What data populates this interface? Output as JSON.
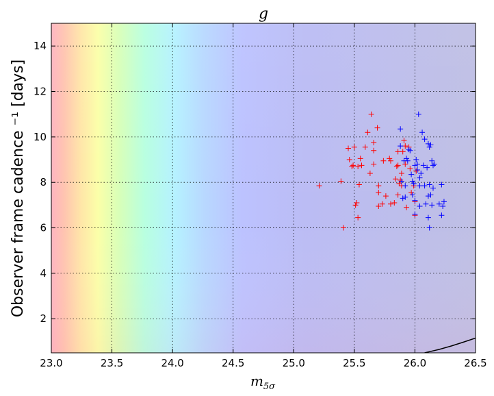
{
  "chart_data": {
    "type": "scatter",
    "title": "g",
    "xlabel_base": "m",
    "xlabel_sub": "5σ",
    "ylabel": "Observer frame cadence ⁻¹ [days]",
    "xlim": [
      23.0,
      26.5
    ],
    "ylim": [
      0.5,
      15.0
    ],
    "xticks": [
      "23.0",
      "23.5",
      "24.0",
      "24.5",
      "25.0",
      "25.5",
      "26.0",
      "26.5"
    ],
    "yticks": [
      "2",
      "4",
      "6",
      "8",
      "10",
      "12",
      "14"
    ],
    "grid": true,
    "background": "rainbow colormap (red/yellow at low m, blue/purple at high m)",
    "series": [
      {
        "name": "red",
        "color": "#ff0000",
        "marker": "+",
        "points": [
          [
            25.21,
            7.85
          ],
          [
            25.39,
            8.05
          ],
          [
            25.41,
            6.0
          ],
          [
            25.45,
            9.5
          ],
          [
            25.46,
            9.0
          ],
          [
            25.48,
            8.7
          ],
          [
            25.49,
            8.75
          ],
          [
            25.5,
            9.55
          ],
          [
            25.51,
            7.0
          ],
          [
            25.52,
            7.1
          ],
          [
            25.53,
            6.45
          ],
          [
            25.53,
            8.7
          ],
          [
            25.54,
            7.9
          ],
          [
            25.55,
            9.05
          ],
          [
            25.56,
            8.75
          ],
          [
            25.59,
            9.55
          ],
          [
            25.61,
            10.2
          ],
          [
            25.63,
            8.4
          ],
          [
            25.64,
            11.0
          ],
          [
            25.66,
            9.75
          ],
          [
            25.66,
            9.4
          ],
          [
            25.66,
            8.8
          ],
          [
            25.69,
            10.4
          ],
          [
            25.7,
            7.85
          ],
          [
            25.7,
            7.55
          ],
          [
            25.7,
            6.95
          ],
          [
            25.73,
            7.05
          ],
          [
            25.74,
            8.95
          ],
          [
            25.76,
            7.4
          ],
          [
            25.79,
            9.05
          ],
          [
            25.8,
            8.95
          ],
          [
            25.8,
            7.05
          ],
          [
            25.83,
            7.1
          ],
          [
            25.84,
            8.15
          ],
          [
            25.85,
            8.7
          ],
          [
            25.86,
            9.35
          ],
          [
            25.86,
            8.75
          ],
          [
            25.86,
            7.45
          ],
          [
            25.87,
            7.95
          ],
          [
            25.88,
            8.1
          ],
          [
            25.89,
            8.4
          ],
          [
            25.89,
            7.85
          ],
          [
            25.9,
            9.35
          ],
          [
            25.91,
            9.85
          ],
          [
            25.92,
            9.6
          ],
          [
            25.92,
            8.8
          ],
          [
            25.93,
            6.9
          ],
          [
            25.95,
            9.55
          ],
          [
            25.96,
            8.6
          ],
          [
            25.97,
            7.55
          ],
          [
            25.99,
            7.85
          ],
          [
            26.0,
            6.55
          ],
          [
            26.0,
            7.15
          ],
          [
            26.01,
            8.5
          ]
        ]
      },
      {
        "name": "blue",
        "color": "#0000ff",
        "marker": "+",
        "points": [
          [
            25.88,
            10.35
          ],
          [
            25.88,
            9.6
          ],
          [
            25.89,
            8.05
          ],
          [
            25.9,
            7.3
          ],
          [
            25.91,
            8.95
          ],
          [
            25.92,
            7.85
          ],
          [
            25.92,
            7.35
          ],
          [
            25.93,
            9.05
          ],
          [
            25.94,
            8.95
          ],
          [
            25.95,
            9.45
          ],
          [
            25.96,
            9.4
          ],
          [
            25.97,
            8.35
          ],
          [
            25.98,
            8.05
          ],
          [
            25.98,
            7.45
          ],
          [
            25.99,
            7.95
          ],
          [
            26.0,
            8.75
          ],
          [
            26.0,
            7.2
          ],
          [
            26.0,
            6.6
          ],
          [
            26.01,
            9.0
          ],
          [
            26.02,
            8.8
          ],
          [
            26.02,
            8.55
          ],
          [
            26.03,
            11.0
          ],
          [
            26.04,
            8.2
          ],
          [
            26.04,
            7.85
          ],
          [
            26.04,
            6.95
          ],
          [
            26.05,
            8.4
          ],
          [
            26.06,
            10.2
          ],
          [
            26.07,
            8.75
          ],
          [
            26.08,
            7.85
          ],
          [
            26.08,
            9.9
          ],
          [
            26.09,
            7.05
          ],
          [
            26.1,
            8.65
          ],
          [
            26.11,
            9.7
          ],
          [
            26.11,
            7.4
          ],
          [
            26.11,
            6.45
          ],
          [
            26.12,
            9.55
          ],
          [
            26.12,
            7.9
          ],
          [
            26.12,
            6.0
          ],
          [
            26.13,
            9.65
          ],
          [
            26.13,
            7.45
          ],
          [
            26.14,
            7.0
          ],
          [
            26.14,
            8.95
          ],
          [
            26.15,
            8.75
          ],
          [
            26.15,
            7.75
          ],
          [
            26.16,
            8.8
          ],
          [
            26.2,
            7.05
          ],
          [
            26.22,
            7.9
          ],
          [
            26.22,
            6.55
          ],
          [
            26.23,
            6.95
          ],
          [
            26.24,
            7.15
          ]
        ]
      }
    ],
    "curve": {
      "name": "black-line",
      "color": "#000000",
      "points": [
        [
          26.08,
          0.5
        ],
        [
          26.2,
          0.65
        ],
        [
          26.3,
          0.8
        ],
        [
          26.4,
          0.97
        ],
        [
          26.5,
          1.15
        ]
      ]
    }
  }
}
